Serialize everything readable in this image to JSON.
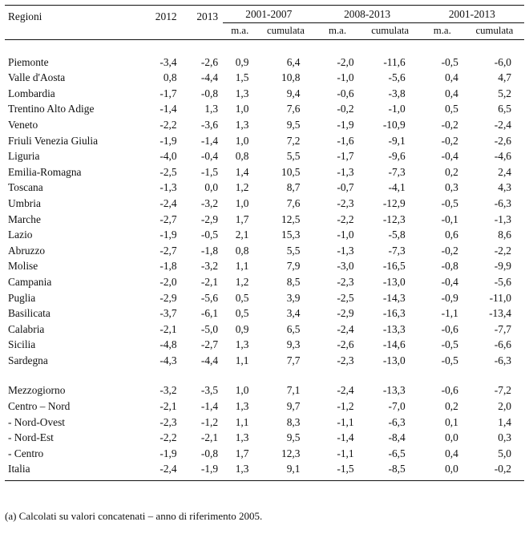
{
  "header": {
    "regioni": "Regioni",
    "y2012": "2012",
    "y2013": "2013",
    "g1": "2001-2007",
    "g2": "2008-2013",
    "g3": "2001-2013",
    "ma": "m.a.",
    "cumulata": "cumulata"
  },
  "rows": [
    [
      "Piemonte",
      "-3,4",
      "-2,6",
      "0,9",
      "6,4",
      "-2,0",
      "-11,6",
      "-0,5",
      "-6,0"
    ],
    [
      "Valle d'Aosta",
      "0,8",
      "-4,4",
      "1,5",
      "10,8",
      "-1,0",
      "-5,6",
      "0,4",
      "4,7"
    ],
    [
      "Lombardia",
      "-1,7",
      "-0,8",
      "1,3",
      "9,4",
      "-0,6",
      "-3,8",
      "0,4",
      "5,2"
    ],
    [
      "Trentino Alto Adige",
      "-1,4",
      "1,3",
      "1,0",
      "7,6",
      "-0,2",
      "-1,0",
      "0,5",
      "6,5"
    ],
    [
      "Veneto",
      "-2,2",
      "-3,6",
      "1,3",
      "9,5",
      "-1,9",
      "-10,9",
      "-0,2",
      "-2,4"
    ],
    [
      "Friuli  Venezia Giulia",
      "-1,9",
      "-1,4",
      "1,0",
      "7,2",
      "-1,6",
      "-9,1",
      "-0,2",
      "-2,6"
    ],
    [
      "Liguria",
      "-4,0",
      "-0,4",
      "0,8",
      "5,5",
      "-1,7",
      "-9,6",
      "-0,4",
      "-4,6"
    ],
    [
      "Emilia-Romagna",
      "-2,5",
      "-1,5",
      "1,4",
      "10,5",
      "-1,3",
      "-7,3",
      "0,2",
      "2,4"
    ],
    [
      "Toscana",
      "-1,3",
      "0,0",
      "1,2",
      "8,7",
      "-0,7",
      "-4,1",
      "0,3",
      "4,3"
    ],
    [
      "Umbria",
      "-2,4",
      "-3,2",
      "1,0",
      "7,6",
      "-2,3",
      "-12,9",
      "-0,5",
      "-6,3"
    ],
    [
      "Marche",
      "-2,7",
      "-2,9",
      "1,7",
      "12,5",
      "-2,2",
      "-12,3",
      "-0,1",
      "-1,3"
    ],
    [
      "Lazio",
      "-1,9",
      "-0,5",
      "2,1",
      "15,3",
      "-1,0",
      "-5,8",
      "0,6",
      "8,6"
    ],
    [
      "Abruzzo",
      "-2,7",
      "-1,8",
      "0,8",
      "5,5",
      "-1,3",
      "-7,3",
      "-0,2",
      "-2,2"
    ],
    [
      "Molise",
      "-1,8",
      "-3,2",
      "1,1",
      "7,9",
      "-3,0",
      "-16,5",
      "-0,8",
      "-9,9"
    ],
    [
      "Campania",
      "-2,0",
      "-2,1",
      "1,2",
      "8,5",
      "-2,3",
      "-13,0",
      "-0,4",
      "-5,6"
    ],
    [
      "Puglia",
      "-2,9",
      "-5,6",
      "0,5",
      "3,9",
      "-2,5",
      "-14,3",
      "-0,9",
      "-11,0"
    ],
    [
      "Basilicata",
      "-3,7",
      "-6,1",
      "0,5",
      "3,4",
      "-2,9",
      "-16,3",
      "-1,1",
      "-13,4"
    ],
    [
      "Calabria",
      "-2,1",
      "-5,0",
      "0,9",
      "6,5",
      "-2,4",
      "-13,3",
      "-0,6",
      "-7,7"
    ],
    [
      "Sicilia",
      "-4,8",
      "-2,7",
      "1,3",
      "9,3",
      "-2,6",
      "-14,6",
      "-0,5",
      "-6,6"
    ],
    [
      "Sardegna",
      "-4,3",
      "-4,4",
      "1,1",
      "7,7",
      "-2,3",
      "-13,0",
      "-0,5",
      "-6,3"
    ]
  ],
  "aggregates": [
    [
      "Mezzogiorno",
      "-3,2",
      "-3,5",
      "1,0",
      "7,1",
      "-2,4",
      "-13,3",
      "-0,6",
      "-7,2"
    ],
    [
      "Centro – Nord",
      "-2,1",
      "-1,4",
      "1,3",
      "9,7",
      "-1,2",
      "-7,0",
      "0,2",
      "2,0"
    ],
    [
      " - Nord-Ovest",
      "-2,3",
      "-1,2",
      "1,1",
      "8,3",
      "-1,1",
      "-6,3",
      "0,1",
      "1,4"
    ],
    [
      " - Nord-Est",
      "-2,2",
      "-2,1",
      "1,3",
      "9,5",
      "-1,4",
      "-8,4",
      "0,0",
      "0,3"
    ],
    [
      " - Centro",
      "-1,9",
      "-0,8",
      "1,7",
      "12,3",
      "-1,1",
      "-6,5",
      "0,4",
      "5,0"
    ],
    [
      "Italia",
      "-2,4",
      "-1,9",
      "1,3",
      "9,1",
      "-1,5",
      "-8,5",
      "0,0",
      "-0,2"
    ]
  ],
  "note": "(a) Calcolati su valori concatenati – anno di riferimento 2005."
}
